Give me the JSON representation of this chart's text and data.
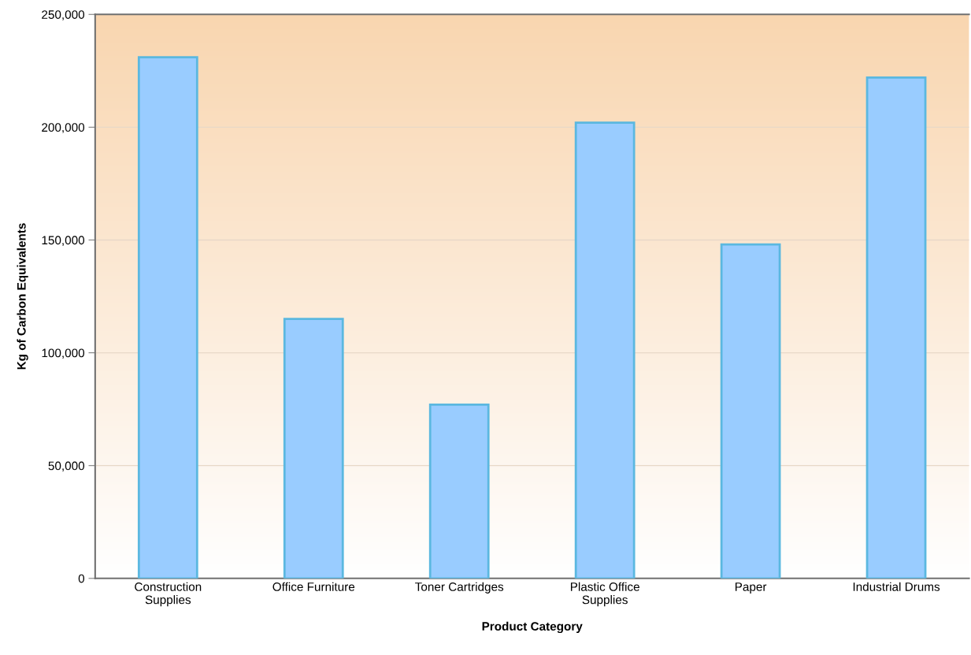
{
  "chart_data": {
    "type": "bar",
    "xlabel": "Product Category",
    "ylabel": "Kg of Carbon Equivalents",
    "categories": [
      "Construction\nSupplies",
      "Office Furniture",
      "Toner Cartridges",
      "Plastic Office\nSupplies",
      "Paper",
      "Industrial Drums"
    ],
    "values": [
      231000,
      115000,
      77000,
      202000,
      148000,
      222000
    ],
    "color": "#99ccff",
    "ylim": [
      0,
      250000
    ],
    "yticks": [
      {
        "value": 0,
        "label": "0"
      },
      {
        "value": 50000,
        "label": "50,000"
      },
      {
        "value": 100000,
        "label": "100,000"
      },
      {
        "value": 150000,
        "label": "150,000"
      },
      {
        "value": 200000,
        "label": "200,000"
      },
      {
        "value": 250000,
        "label": "250,000"
      }
    ],
    "grid": "y"
  }
}
